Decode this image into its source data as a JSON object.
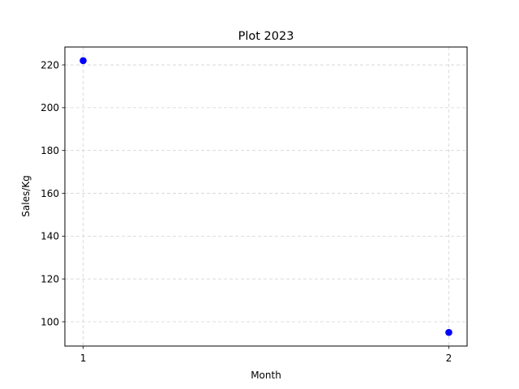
{
  "chart_data": {
    "type": "scatter",
    "title": "Plot 2023",
    "xlabel": "Month",
    "ylabel": "Sales/Kg",
    "x": [
      1,
      2
    ],
    "y": [
      222,
      95
    ],
    "xticks": [
      "1",
      "2"
    ],
    "yticks": [
      "100",
      "120",
      "140",
      "160",
      "180",
      "200",
      "220"
    ],
    "xlim": [
      0.95,
      2.05
    ],
    "ylim": [
      88.65,
      228.35
    ],
    "grid": true,
    "marker_color": "#0000ff",
    "grid_color": "#d3d3d3"
  }
}
